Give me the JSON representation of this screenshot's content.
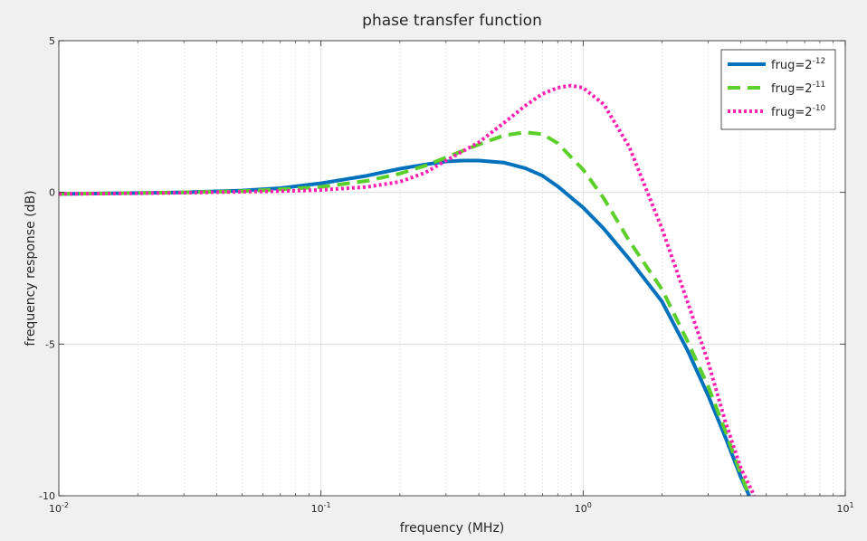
{
  "chart_data": {
    "type": "line",
    "title": "phase transfer function",
    "xlabel": "frequency  (MHz)",
    "ylabel": "frequency response (dB)",
    "xscale": "log",
    "xlim": [
      0.01,
      10
    ],
    "ylim": [
      -10,
      5
    ],
    "x_ticks": [
      {
        "base": "10",
        "exp": "-2"
      },
      {
        "base": "10",
        "exp": "-1"
      },
      {
        "base": "10",
        "exp": "0"
      },
      {
        "base": "10",
        "exp": "1"
      }
    ],
    "y_ticks": [
      "5",
      "0",
      "-5",
      "-10"
    ],
    "grid": true,
    "minor_grid": true,
    "legend_position": "top-right",
    "series": [
      {
        "name_prefix": "frug=2",
        "name_exp": "-12",
        "color": "#0072bd",
        "style": "solid",
        "points": [
          [
            0.01,
            -0.05
          ],
          [
            0.02,
            -0.02
          ],
          [
            0.03,
            0.0
          ],
          [
            0.05,
            0.06
          ],
          [
            0.07,
            0.14
          ],
          [
            0.1,
            0.3
          ],
          [
            0.15,
            0.55
          ],
          [
            0.2,
            0.78
          ],
          [
            0.25,
            0.92
          ],
          [
            0.3,
            1.02
          ],
          [
            0.35,
            1.05
          ],
          [
            0.4,
            1.05
          ],
          [
            0.5,
            0.98
          ],
          [
            0.6,
            0.8
          ],
          [
            0.7,
            0.55
          ],
          [
            0.8,
            0.2
          ],
          [
            1.0,
            -0.5
          ],
          [
            1.2,
            -1.2
          ],
          [
            1.5,
            -2.2
          ],
          [
            2.0,
            -3.6
          ],
          [
            2.5,
            -5.2
          ],
          [
            3.0,
            -6.7
          ],
          [
            3.5,
            -8.1
          ],
          [
            4.0,
            -9.4
          ],
          [
            4.3,
            -10.0
          ]
        ]
      },
      {
        "name_prefix": "frug=2",
        "name_exp": "-11",
        "color": "#5cd02a",
        "style": "dashed",
        "points": [
          [
            0.01,
            -0.05
          ],
          [
            0.02,
            -0.02
          ],
          [
            0.03,
            0.0
          ],
          [
            0.05,
            0.04
          ],
          [
            0.07,
            0.1
          ],
          [
            0.1,
            0.18
          ],
          [
            0.15,
            0.38
          ],
          [
            0.2,
            0.62
          ],
          [
            0.25,
            0.88
          ],
          [
            0.3,
            1.15
          ],
          [
            0.4,
            1.58
          ],
          [
            0.5,
            1.88
          ],
          [
            0.6,
            1.98
          ],
          [
            0.7,
            1.92
          ],
          [
            0.8,
            1.62
          ],
          [
            1.0,
            0.75
          ],
          [
            1.2,
            -0.2
          ],
          [
            1.5,
            -1.6
          ],
          [
            2.0,
            -3.2
          ],
          [
            2.5,
            -4.9
          ],
          [
            3.0,
            -6.4
          ],
          [
            3.5,
            -7.9
          ],
          [
            4.0,
            -9.3
          ],
          [
            4.3,
            -10.0
          ]
        ]
      },
      {
        "name_prefix": "frug=2",
        "name_exp": "-10",
        "color": "#ff1fb0",
        "style": "dotted",
        "points": [
          [
            0.01,
            -0.05
          ],
          [
            0.02,
            -0.03
          ],
          [
            0.03,
            -0.01
          ],
          [
            0.05,
            0.02
          ],
          [
            0.07,
            0.04
          ],
          [
            0.1,
            0.08
          ],
          [
            0.15,
            0.18
          ],
          [
            0.2,
            0.35
          ],
          [
            0.25,
            0.65
          ],
          [
            0.3,
            1.05
          ],
          [
            0.4,
            1.65
          ],
          [
            0.5,
            2.3
          ],
          [
            0.6,
            2.85
          ],
          [
            0.7,
            3.25
          ],
          [
            0.8,
            3.45
          ],
          [
            0.9,
            3.52
          ],
          [
            1.0,
            3.45
          ],
          [
            1.2,
            2.9
          ],
          [
            1.5,
            1.5
          ],
          [
            2.0,
            -1.2
          ],
          [
            2.5,
            -3.6
          ],
          [
            3.0,
            -5.6
          ],
          [
            3.5,
            -7.6
          ],
          [
            4.0,
            -9.1
          ],
          [
            4.5,
            -10.0
          ]
        ]
      }
    ]
  }
}
